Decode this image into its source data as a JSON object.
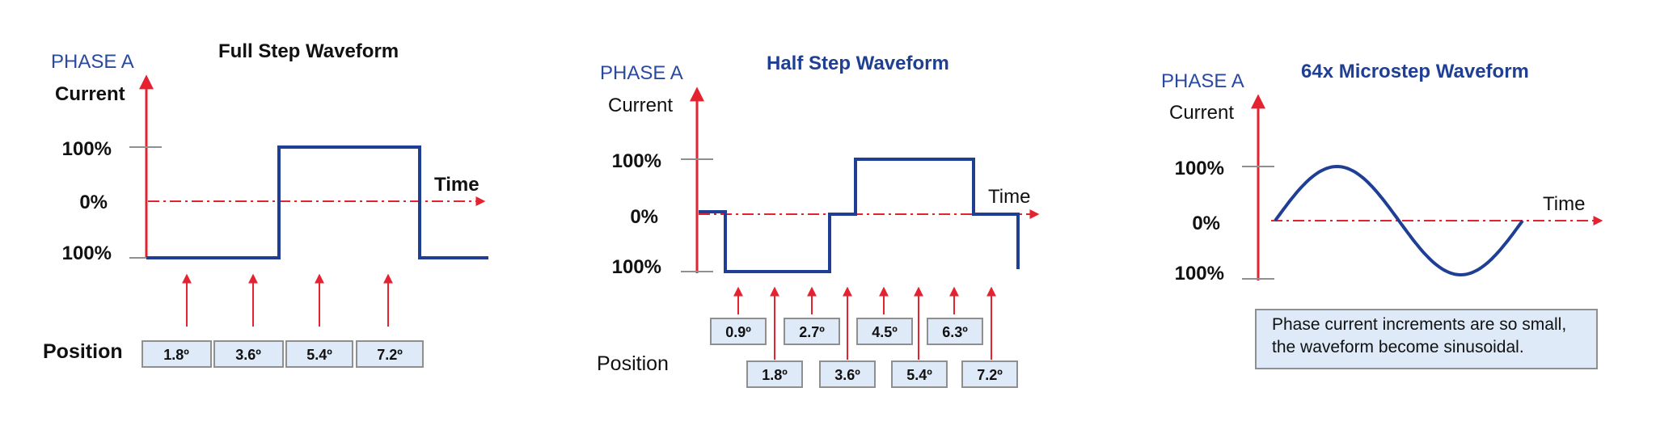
{
  "colors": {
    "waveform": "#1f3f94",
    "axis": "#e52330",
    "dashed_zero": "#e52330",
    "phase_label": "#2a4a9e",
    "box_fill": "#deeaf7",
    "box_border": "#8f8f8f",
    "tick": "#8f8f8f",
    "black_text": "#111111"
  },
  "panels": {
    "full": {
      "phase_label": "PHASE A",
      "title": "Full Step Waveform",
      "current_label": "Current",
      "time_label": "Time",
      "position_label": "Position",
      "tick_labels": [
        "100%",
        "0%",
        "100%"
      ],
      "positions": [
        "1.8º",
        "3.6º",
        "5.4º",
        "7.2º"
      ]
    },
    "half": {
      "phase_label": "PHASE A",
      "title": "Half Step Waveform",
      "current_label": "Current",
      "time_label": "Time",
      "position_label": "Position",
      "tick_labels": [
        "100%",
        "0%",
        "100%"
      ],
      "positions_upper": [
        "0.9º",
        "2.7º",
        "4.5º",
        "6.3º"
      ],
      "positions_lower": [
        "1.8º",
        "3.6º",
        "5.4º",
        "7.2º"
      ]
    },
    "micro": {
      "phase_label": "PHASE A",
      "title": "64x Microstep Waveform",
      "current_label": "Current",
      "time_label": "Time",
      "tick_labels": [
        "100%",
        "0%",
        "100%"
      ],
      "note_line1": "Phase current increments are so small,",
      "note_line2": "the waveform become sinusoidal."
    }
  }
}
